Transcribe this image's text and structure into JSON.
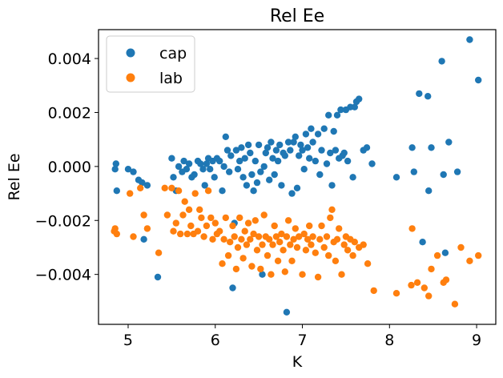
{
  "chart_data": {
    "type": "scatter",
    "title": "Rel Ee",
    "xlabel": "K",
    "ylabel": "Rel Ee",
    "xlim": [
      4.66,
      9.22
    ],
    "ylim": [
      -0.00585,
      0.00507
    ],
    "x_ticks": [
      5,
      6,
      7,
      8,
      9
    ],
    "y_ticks": [
      -0.004,
      -0.002,
      0.0,
      0.002,
      0.004
    ],
    "x_tick_labels": [
      "5",
      "6",
      "7",
      "8",
      "9"
    ],
    "y_tick_labels": [
      "−0.004",
      "−0.002",
      "0.000",
      "0.002",
      "0.004"
    ],
    "grid": false,
    "legend_position": "top-left",
    "series": [
      {
        "name": "cap",
        "color": "#1f77b4",
        "points": [
          [
            4.85,
            -0.0001
          ],
          [
            4.86,
            0.0001
          ],
          [
            4.87,
            -0.0009
          ],
          [
            5.0,
            -0.0001
          ],
          [
            5.06,
            -0.0002
          ],
          [
            5.12,
            -0.0005
          ],
          [
            5.16,
            -0.0006
          ],
          [
            5.18,
            -0.0027
          ],
          [
            5.22,
            -0.0007
          ],
          [
            5.34,
            -0.0041
          ],
          [
            5.5,
            0.0003
          ],
          [
            5.52,
            -0.0004
          ],
          [
            5.55,
            -0.0009
          ],
          [
            5.58,
            0.0
          ],
          [
            5.62,
            -0.0002
          ],
          [
            5.64,
            0.0002
          ],
          [
            5.67,
            -0.0001
          ],
          [
            5.7,
            0.0001
          ],
          [
            5.73,
            -0.0004
          ],
          [
            5.76,
            -0.0003
          ],
          [
            5.8,
            0.0002
          ],
          [
            5.83,
            0.0001
          ],
          [
            5.86,
            -0.0001
          ],
          [
            5.88,
            -0.0007
          ],
          [
            5.9,
            0.0001
          ],
          [
            5.92,
            0.0003
          ],
          [
            5.94,
            -0.0001
          ],
          [
            5.97,
            0.0002
          ],
          [
            5.99,
            -0.0004
          ],
          [
            6.02,
            0.0003
          ],
          [
            6.05,
            0.0002
          ],
          [
            6.08,
            -0.0009
          ],
          [
            6.1,
            0.0
          ],
          [
            6.12,
            0.0011
          ],
          [
            6.14,
            0.0006
          ],
          [
            6.16,
            -0.0002
          ],
          [
            6.18,
            0.0004
          ],
          [
            6.2,
            -0.0045
          ],
          [
            6.22,
            -0.0021
          ],
          [
            6.24,
            0.0006
          ],
          [
            6.26,
            -0.0001
          ],
          [
            6.28,
            0.0002
          ],
          [
            6.3,
            0.0007
          ],
          [
            6.32,
            -0.0004
          ],
          [
            6.34,
            0.0003
          ],
          [
            6.36,
            -0.0007
          ],
          [
            6.38,
            0.0008
          ],
          [
            6.4,
            0.0005
          ],
          [
            6.42,
            -0.0003
          ],
          [
            6.44,
            -0.0009
          ],
          [
            6.46,
            0.0002
          ],
          [
            6.48,
            -0.0006
          ],
          [
            6.5,
            0.0008
          ],
          [
            6.52,
            -0.0002
          ],
          [
            6.54,
            -0.004
          ],
          [
            6.56,
            0.0
          ],
          [
            6.58,
            0.0005
          ],
          [
            6.6,
            0.0007
          ],
          [
            6.62,
            -0.0005
          ],
          [
            6.64,
            0.0009
          ],
          [
            6.66,
            0.0003
          ],
          [
            6.68,
            -0.0003
          ],
          [
            6.7,
            0.0006
          ],
          [
            6.72,
            0.0002
          ],
          [
            6.74,
            0.0008
          ],
          [
            6.76,
            -0.0007
          ],
          [
            6.78,
            0.0005
          ],
          [
            6.8,
            0.0004
          ],
          [
            6.82,
            -0.0054
          ],
          [
            6.84,
            0.0009
          ],
          [
            6.86,
            0.0006
          ],
          [
            6.88,
            -0.001
          ],
          [
            6.9,
            0.0009
          ],
          [
            6.92,
            0.0011
          ],
          [
            6.94,
            -0.0008
          ],
          [
            6.96,
            0.0004
          ],
          [
            6.98,
            0.0008
          ],
          [
            7.0,
            0.0006
          ],
          [
            7.02,
            -0.0001
          ],
          [
            7.04,
            0.0012
          ],
          [
            7.06,
            0.0007
          ],
          [
            7.08,
            0.0003
          ],
          [
            7.1,
            0.0014
          ],
          [
            7.12,
            0.0009
          ],
          [
            7.15,
            0.0002
          ],
          [
            7.18,
            0.0012
          ],
          [
            7.2,
            -0.0003
          ],
          [
            7.22,
            0.0006
          ],
          [
            7.25,
            0.0014
          ],
          [
            7.28,
            0.0001
          ],
          [
            7.3,
            0.0019
          ],
          [
            7.32,
            0.0005
          ],
          [
            7.34,
            -0.0007
          ],
          [
            7.36,
            0.0013
          ],
          [
            7.38,
            0.0006
          ],
          [
            7.4,
            0.0019
          ],
          [
            7.42,
            0.0003
          ],
          [
            7.44,
            0.0021
          ],
          [
            7.46,
            0.0004
          ],
          [
            7.48,
            0.0005
          ],
          [
            7.5,
            0.0021
          ],
          [
            7.52,
            0.0002
          ],
          [
            7.55,
            0.0022
          ],
          [
            7.58,
            -0.0004
          ],
          [
            7.6,
            0.0022
          ],
          [
            7.62,
            0.0024
          ],
          [
            7.65,
            0.0025
          ],
          [
            7.7,
            0.0006
          ],
          [
            7.74,
            0.0007
          ],
          [
            7.8,
            0.0001
          ],
          [
            8.08,
            -0.0004
          ],
          [
            8.26,
            0.0007
          ],
          [
            8.28,
            -0.0002
          ],
          [
            8.34,
            0.0027
          ],
          [
            8.38,
            -0.0028
          ],
          [
            8.44,
            0.0026
          ],
          [
            8.45,
            -0.0009
          ],
          [
            8.48,
            0.0007
          ],
          [
            8.6,
            0.0039
          ],
          [
            8.62,
            -0.0003
          ],
          [
            8.64,
            -0.0032
          ],
          [
            8.68,
            0.0009
          ],
          [
            8.78,
            -0.0002
          ],
          [
            8.92,
            0.0047
          ],
          [
            9.02,
            0.0032
          ]
        ]
      },
      {
        "name": "lab",
        "color": "#ff7f0e",
        "points": [
          [
            4.84,
            -0.0024
          ],
          [
            4.85,
            -0.0023
          ],
          [
            4.87,
            -0.0025
          ],
          [
            5.02,
            -0.001
          ],
          [
            5.06,
            -0.0026
          ],
          [
            5.14,
            -0.0008
          ],
          [
            5.18,
            -0.0018
          ],
          [
            5.22,
            -0.0023
          ],
          [
            5.35,
            -0.0032
          ],
          [
            5.42,
            -0.0008
          ],
          [
            5.45,
            -0.0018
          ],
          [
            5.5,
            -0.0008
          ],
          [
            5.52,
            -0.0024
          ],
          [
            5.55,
            -0.0021
          ],
          [
            5.58,
            -0.0009
          ],
          [
            5.6,
            -0.0025
          ],
          [
            5.63,
            -0.0018
          ],
          [
            5.65,
            -0.0013
          ],
          [
            5.68,
            -0.0025
          ],
          [
            5.7,
            -0.0016
          ],
          [
            5.72,
            -0.0022
          ],
          [
            5.75,
            -0.0025
          ],
          [
            5.77,
            -0.001
          ],
          [
            5.8,
            -0.0024
          ],
          [
            5.82,
            -0.0016
          ],
          [
            5.84,
            -0.0019
          ],
          [
            5.87,
            -0.0026
          ],
          [
            5.9,
            -0.0022
          ],
          [
            5.92,
            -0.0009
          ],
          [
            5.95,
            -0.0019
          ],
          [
            5.97,
            -0.0027
          ],
          [
            6.0,
            -0.0021
          ],
          [
            6.02,
            -0.0025
          ],
          [
            6.05,
            -0.0024
          ],
          [
            6.08,
            -0.0036
          ],
          [
            6.1,
            -0.0027
          ],
          [
            6.12,
            -0.0019
          ],
          [
            6.15,
            -0.0033
          ],
          [
            6.17,
            -0.0028
          ],
          [
            6.2,
            -0.0022
          ],
          [
            6.22,
            -0.0026
          ],
          [
            6.24,
            -0.0038
          ],
          [
            6.26,
            -0.003
          ],
          [
            6.28,
            -0.0019
          ],
          [
            6.3,
            -0.0027
          ],
          [
            6.32,
            -0.0034
          ],
          [
            6.34,
            -0.0024
          ],
          [
            6.36,
            -0.0029
          ],
          [
            6.38,
            -0.0021
          ],
          [
            6.4,
            -0.0027
          ],
          [
            6.42,
            -0.0037
          ],
          [
            6.44,
            -0.0025
          ],
          [
            6.46,
            -0.002
          ],
          [
            6.48,
            -0.0031
          ],
          [
            6.5,
            -0.0026
          ],
          [
            6.52,
            -0.0038
          ],
          [
            6.54,
            -0.0029
          ],
          [
            6.56,
            -0.0018
          ],
          [
            6.58,
            -0.0026
          ],
          [
            6.6,
            -0.0033
          ],
          [
            6.62,
            -0.0027
          ],
          [
            6.64,
            -0.004
          ],
          [
            6.66,
            -0.0029
          ],
          [
            6.68,
            -0.0022
          ],
          [
            6.7,
            -0.0026
          ],
          [
            6.72,
            -0.0035
          ],
          [
            6.74,
            -0.0028
          ],
          [
            6.76,
            -0.0025
          ],
          [
            6.78,
            -0.0031
          ],
          [
            6.8,
            -0.0039
          ],
          [
            6.82,
            -0.0026
          ],
          [
            6.84,
            -0.002
          ],
          [
            6.86,
            -0.0029
          ],
          [
            6.88,
            -0.0035
          ],
          [
            6.9,
            -0.0027
          ],
          [
            6.92,
            -0.0023
          ],
          [
            6.94,
            -0.003
          ],
          [
            6.96,
            -0.0026
          ],
          [
            7.0,
            -0.004
          ],
          [
            7.02,
            -0.0025
          ],
          [
            7.04,
            -0.0031
          ],
          [
            7.06,
            -0.0027
          ],
          [
            7.08,
            -0.0022
          ],
          [
            7.1,
            -0.0029
          ],
          [
            7.12,
            -0.0026
          ],
          [
            7.15,
            -0.0032
          ],
          [
            7.18,
            -0.0041
          ],
          [
            7.2,
            -0.0027
          ],
          [
            7.22,
            -0.0022
          ],
          [
            7.25,
            -0.003
          ],
          [
            7.28,
            -0.0026
          ],
          [
            7.3,
            -0.0033
          ],
          [
            7.32,
            -0.0019
          ],
          [
            7.34,
            -0.0016
          ],
          [
            7.36,
            -0.0028
          ],
          [
            7.38,
            -0.0035
          ],
          [
            7.4,
            -0.0027
          ],
          [
            7.42,
            -0.0023
          ],
          [
            7.45,
            -0.004
          ],
          [
            7.48,
            -0.0029
          ],
          [
            7.5,
            -0.0026
          ],
          [
            7.52,
            -0.0031
          ],
          [
            7.55,
            -0.0027
          ],
          [
            7.58,
            -0.0033
          ],
          [
            7.6,
            -0.0028
          ],
          [
            7.65,
            -0.003
          ],
          [
            7.7,
            -0.0029
          ],
          [
            7.75,
            -0.0036
          ],
          [
            7.82,
            -0.0046
          ],
          [
            8.08,
            -0.0047
          ],
          [
            8.25,
            -0.0044
          ],
          [
            8.26,
            -0.0023
          ],
          [
            8.32,
            -0.0043
          ],
          [
            8.4,
            -0.0045
          ],
          [
            8.45,
            -0.0048
          ],
          [
            8.48,
            -0.0038
          ],
          [
            8.55,
            -0.0033
          ],
          [
            8.62,
            -0.0043
          ],
          [
            8.65,
            -0.0042
          ],
          [
            8.75,
            -0.0051
          ],
          [
            8.82,
            -0.003
          ],
          [
            8.92,
            -0.0035
          ],
          [
            9.02,
            -0.0033
          ]
        ]
      }
    ]
  }
}
